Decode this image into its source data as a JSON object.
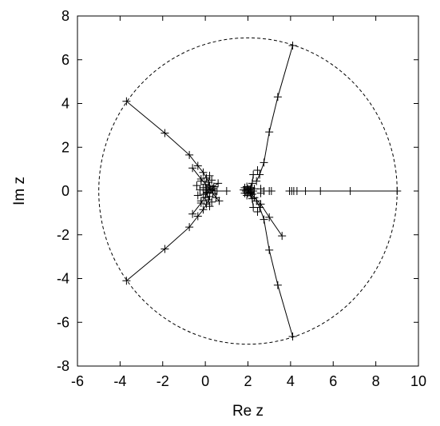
{
  "chart_data": {
    "type": "scatter",
    "title": "",
    "xlabel": "Re z",
    "ylabel": "Im z",
    "xlim": [
      -6,
      10
    ],
    "ylim": [
      -8,
      8
    ],
    "xticks": [
      "-6",
      "-4",
      "-2",
      "0",
      "2",
      "4",
      "6",
      "8",
      "10"
    ],
    "yticks": [
      "-8",
      "-6",
      "-4",
      "-2",
      "0",
      "2",
      "4",
      "6",
      "8"
    ],
    "grid": false,
    "legend": "none",
    "colors": {
      "line": "#000000",
      "background": "#ffffff"
    },
    "circle": {
      "center": [
        2,
        0
      ],
      "radius": 7,
      "style": "dashed"
    },
    "series": [
      {
        "style": "lines+markers",
        "points": [
          [
            -3.7,
            4.1
          ],
          [
            -1.9,
            2.65
          ],
          [
            -0.75,
            1.65
          ],
          [
            -0.35,
            1.15
          ],
          [
            -0.1,
            0.85
          ],
          [
            0.05,
            0.6
          ],
          [
            0.15,
            0.4
          ],
          [
            0.2,
            0.25
          ]
        ]
      },
      {
        "style": "lines+markers",
        "points": [
          [
            -3.7,
            -4.1
          ],
          [
            -1.9,
            -2.65
          ],
          [
            -0.75,
            -1.65
          ],
          [
            -0.35,
            -1.15
          ],
          [
            -0.1,
            -0.85
          ],
          [
            0.05,
            -0.6
          ],
          [
            0.15,
            -0.4
          ],
          [
            0.2,
            -0.25
          ]
        ]
      },
      {
        "style": "lines+markers",
        "points": [
          [
            4.1,
            6.65
          ],
          [
            3.4,
            4.3
          ],
          [
            3.0,
            2.7
          ],
          [
            2.75,
            1.3
          ],
          [
            2.55,
            0.75
          ],
          [
            2.4,
            0.45
          ]
        ]
      },
      {
        "style": "lines+markers",
        "points": [
          [
            4.1,
            -6.65
          ],
          [
            3.4,
            -4.3
          ],
          [
            3.0,
            -2.7
          ],
          [
            2.75,
            -1.3
          ],
          [
            2.55,
            -0.75
          ],
          [
            2.4,
            -0.45
          ]
        ]
      },
      {
        "style": "lines+markers",
        "points": [
          [
            9.0,
            0
          ],
          [
            6.8,
            0
          ],
          [
            5.4,
            0
          ],
          [
            4.7,
            0
          ],
          [
            4.3,
            0
          ],
          [
            4.15,
            0
          ],
          [
            4.05,
            0
          ],
          [
            3.95,
            0
          ]
        ]
      },
      {
        "style": "lines+markers",
        "points": [
          [
            3.6,
            -2.05
          ],
          [
            3.0,
            -1.2
          ],
          [
            2.6,
            -0.6
          ],
          [
            2.3,
            -0.3
          ],
          [
            2.15,
            -0.1
          ]
        ]
      },
      {
        "style": "lines+markers",
        "points": [
          [
            -0.6,
            1.05
          ],
          [
            -0.2,
            0.55
          ],
          [
            0.15,
            0.15
          ],
          [
            0.5,
            -0.3
          ],
          [
            0.65,
            -0.45
          ]
        ]
      },
      {
        "style": "lines+markers",
        "points": [
          [
            -0.6,
            -1.05
          ],
          [
            -0.2,
            -0.55
          ],
          [
            0.1,
            -0.1
          ],
          [
            0.4,
            0.2
          ],
          [
            0.6,
            0.35
          ]
        ]
      },
      {
        "style": "lines+markers",
        "points": [
          [
            1.0,
            0
          ],
          [
            0.55,
            0
          ],
          [
            0.25,
            0.05
          ],
          [
            0.0,
            0.05
          ]
        ]
      },
      {
        "style": "lines+markers",
        "points": [
          [
            2.25,
            0.75
          ],
          [
            2.2,
            0.35
          ],
          [
            2.1,
            0.1
          ],
          [
            2.0,
            0
          ]
        ]
      },
      {
        "style": "lines+markers",
        "points": [
          [
            2.25,
            -0.75
          ],
          [
            2.2,
            -0.35
          ],
          [
            2.1,
            -0.1
          ],
          [
            2.0,
            0
          ]
        ]
      },
      {
        "style": "markers",
        "points": [
          [
            -0.4,
            0.25
          ],
          [
            -0.35,
            -0.2
          ],
          [
            -0.25,
            0.05
          ],
          [
            -0.1,
            0.15
          ],
          [
            -0.1,
            -0.15
          ],
          [
            0.0,
            0.3
          ],
          [
            0.0,
            -0.3
          ],
          [
            0.05,
            0.05
          ],
          [
            0.1,
            -0.05
          ],
          [
            0.3,
            0.5
          ],
          [
            0.3,
            -0.5
          ],
          [
            0.35,
            0.1
          ],
          [
            0.35,
            -0.1
          ],
          [
            0.45,
            0.0
          ],
          [
            0.2,
            0.7
          ],
          [
            0.2,
            -0.7
          ],
          [
            -0.2,
            0.45
          ],
          [
            -0.2,
            -0.45
          ]
        ]
      },
      {
        "style": "markers",
        "points": [
          [
            1.8,
            0.05
          ],
          [
            1.85,
            -0.1
          ],
          [
            1.85,
            0.15
          ],
          [
            1.9,
            0.0
          ],
          [
            1.95,
            0.2
          ],
          [
            1.95,
            -0.2
          ],
          [
            2.0,
            0.1
          ],
          [
            2.0,
            -0.1
          ],
          [
            2.05,
            0.05
          ],
          [
            2.1,
            -0.05
          ],
          [
            2.15,
            0.15
          ],
          [
            2.2,
            -0.15
          ],
          [
            2.25,
            0.0
          ],
          [
            2.3,
            0.1
          ]
        ]
      },
      {
        "style": "markers",
        "points": [
          [
            2.45,
            0.95
          ],
          [
            2.45,
            -0.95
          ],
          [
            2.6,
            0.1
          ],
          [
            2.6,
            -0.1
          ],
          [
            2.75,
            0.0
          ],
          [
            3.0,
            0.0
          ],
          [
            3.1,
            0.0
          ]
        ]
      }
    ]
  }
}
